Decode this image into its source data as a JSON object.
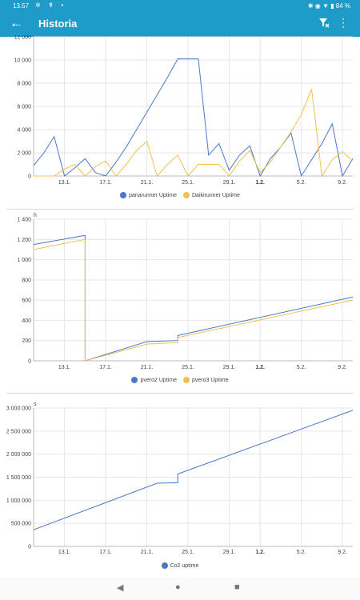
{
  "status_bar": {
    "time": "13.57",
    "battery": "84 %"
  },
  "app_bar": {
    "title": "Historia",
    "back_icon": "arrow-back-icon",
    "filter_icon": "filter-clear-icon",
    "menu_icon": "more-vert-icon"
  },
  "x_ticks": [
    "13.1.",
    "17.1.",
    "21.1.",
    "25.1.",
    "29.1.",
    "1.2.",
    "5.2.",
    "9.2."
  ],
  "bold_tick": "1.2.",
  "chart_data": [
    {
      "type": "line",
      "unit": "",
      "ylim": [
        0,
        12000
      ],
      "y_ticks": [
        0,
        2000,
        4000,
        6000,
        8000,
        10000,
        12000
      ],
      "y_tick_labels": [
        "0",
        "2 000",
        "4 000",
        "6 000",
        "8 000",
        "10 000",
        "12 000"
      ],
      "x": [
        "10.1.",
        "11.1.",
        "12.1.",
        "13.1.",
        "14.1.",
        "15.1.",
        "16.1.",
        "17.1.",
        "18.1.",
        "19.1.",
        "20.1.",
        "21.1.",
        "22.1.",
        "23.1.",
        "24.1.",
        "25.1.",
        "26.1.",
        "27.1.",
        "28.1.",
        "29.1.",
        "30.1.",
        "31.1.",
        "1.2.",
        "2.2.",
        "3.2.",
        "4.2.",
        "5.2.",
        "6.2.",
        "7.2.",
        "8.2.",
        "9.2.",
        "10.2."
      ],
      "series": [
        {
          "name": "panarunner Uptime",
          "color": "#4a78c9",
          "values": [
            900,
            2000,
            3400,
            0,
            700,
            1500,
            300,
            0,
            1200,
            2500,
            4000,
            5500,
            7000,
            8500,
            10100,
            10100,
            10100,
            1800,
            2800,
            500,
            1800,
            2600,
            0,
            1500,
            2500,
            3700,
            0,
            1400,
            2800,
            4500,
            0,
            1500
          ]
        },
        {
          "name": "Daikirunner Uptime",
          "color": "#f0c050",
          "values": [
            0,
            0,
            0,
            600,
            1000,
            0,
            800,
            1300,
            0,
            1000,
            2200,
            3000,
            0,
            1000,
            1800,
            0,
            1000,
            1000,
            1000,
            0,
            1300,
            2200,
            300,
            1200,
            2500,
            3800,
            5300,
            7500,
            0,
            1400,
            2100,
            1300
          ]
        }
      ]
    },
    {
      "type": "line",
      "unit": "h",
      "ylim": [
        0,
        1400
      ],
      "y_ticks": [
        0,
        200,
        400,
        600,
        800,
        1000,
        1200,
        1400
      ],
      "y_tick_labels": [
        "0",
        "200",
        "400",
        "600",
        "800",
        "1 000",
        "1 200",
        "1 400"
      ],
      "x": [
        "10.1.",
        "15.1.",
        "15.1.",
        "21.1.",
        "24.1.",
        "24.1.",
        "10.2."
      ],
      "series": [
        {
          "name": "pvero2 Uptime",
          "color": "#4a78c9",
          "values": [
            1150,
            1240,
            0,
            190,
            200,
            250,
            630
          ]
        },
        {
          "name": "pvero3 Uptime",
          "color": "#f0c050",
          "values": [
            1100,
            1200,
            0,
            165,
            180,
            230,
            600
          ]
        }
      ]
    },
    {
      "type": "line",
      "unit": "s",
      "ylim": [
        0,
        3000000
      ],
      "y_ticks": [
        0,
        500000,
        1000000,
        1500000,
        2000000,
        2500000,
        3000000
      ],
      "y_tick_labels": [
        "0",
        "500 000",
        "1 000 000",
        "1 500 000",
        "2 000 000",
        "2 500 000",
        "3 000 000"
      ],
      "x": [
        "10.1.",
        "22.1.",
        "24.1.",
        "24.1.",
        "10.2."
      ],
      "series": [
        {
          "name": "Co2 uptime",
          "color": "#4a78c9",
          "values": [
            360000,
            1370000,
            1380000,
            1570000,
            2950000
          ]
        }
      ]
    }
  ],
  "nav": {
    "back_icon": "nav-back-icon",
    "home_icon": "nav-home-icon",
    "recents_icon": "nav-recents-icon"
  }
}
